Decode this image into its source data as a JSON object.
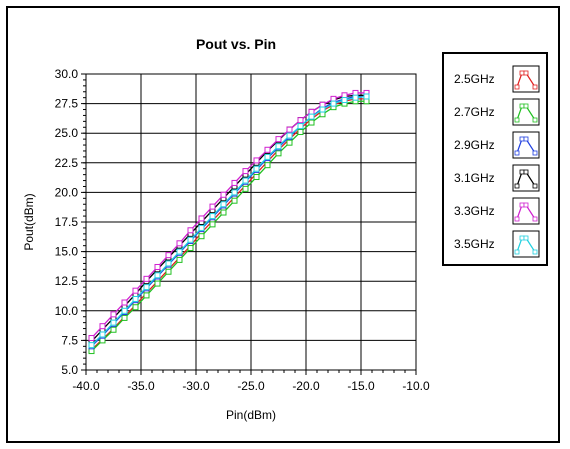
{
  "chart_data": {
    "type": "line",
    "title": "Pout vs. Pin",
    "xlabel": "Pin(dBm)",
    "ylabel": "Pout(dBm)",
    "xlim": [
      -40.0,
      -10.0
    ],
    "ylim": [
      5.0,
      30.0
    ],
    "xticks": [
      "-40.0",
      "-35.0",
      "-30.0",
      "-25.0",
      "-20.0",
      "-15.0",
      "-10.0"
    ],
    "yticks": [
      "5.0",
      "7.5",
      "10.0",
      "12.5",
      "15.0",
      "17.5",
      "20.0",
      "22.5",
      "25.0",
      "27.5",
      "30.0"
    ],
    "grid": true,
    "legend_position": "right",
    "x": [
      -39.5,
      -38.5,
      -37.5,
      -36.5,
      -35.5,
      -34.5,
      -33.5,
      -32.5,
      -31.5,
      -30.5,
      -29.5,
      -28.5,
      -27.5,
      -26.5,
      -25.5,
      -24.5,
      -23.5,
      -22.5,
      -21.5,
      -20.5,
      -19.5,
      -18.5,
      -17.5,
      -16.5,
      -15.5,
      -14.5
    ],
    "series": [
      {
        "name": "2.5GHz",
        "color": "#e02020",
        "values": [
          6.7,
          7.6,
          8.5,
          9.5,
          10.5,
          11.5,
          12.5,
          13.5,
          14.5,
          15.5,
          16.6,
          17.6,
          18.6,
          19.6,
          20.6,
          21.6,
          22.6,
          23.6,
          24.5,
          25.4,
          26.2,
          26.9,
          27.4,
          27.7,
          27.9,
          27.9
        ]
      },
      {
        "name": "2.7GHz",
        "color": "#20c020",
        "values": [
          6.6,
          7.5,
          8.4,
          9.4,
          10.3,
          11.3,
          12.3,
          13.3,
          14.3,
          15.3,
          16.3,
          17.3,
          18.3,
          19.3,
          20.3,
          21.3,
          22.3,
          23.3,
          24.2,
          25.1,
          25.9,
          26.6,
          27.2,
          27.5,
          27.7,
          27.7
        ]
      },
      {
        "name": "2.9GHz",
        "color": "#2040e0",
        "values": [
          7.0,
          7.9,
          8.9,
          9.9,
          10.9,
          11.9,
          12.9,
          13.9,
          14.9,
          15.9,
          16.9,
          17.9,
          18.9,
          19.9,
          20.9,
          21.9,
          22.9,
          23.8,
          24.7,
          25.6,
          26.4,
          27.1,
          27.6,
          27.9,
          28.1,
          28.2
        ]
      },
      {
        "name": "3.1GHz",
        "color": "#000000",
        "values": [
          7.4,
          8.4,
          9.4,
          10.4,
          11.4,
          12.5,
          13.5,
          14.5,
          15.5,
          16.5,
          17.5,
          18.5,
          19.5,
          20.5,
          21.5,
          22.5,
          23.5,
          24.4,
          25.3,
          26.1,
          26.8,
          27.4,
          27.8,
          28.1,
          28.2,
          28.2
        ]
      },
      {
        "name": "3.3GHz",
        "color": "#d020d0",
        "values": [
          7.7,
          8.7,
          9.7,
          10.7,
          11.7,
          12.7,
          13.7,
          14.7,
          15.7,
          16.8,
          17.8,
          18.8,
          19.8,
          20.8,
          21.8,
          22.7,
          23.6,
          24.5,
          25.3,
          26.1,
          26.8,
          27.4,
          27.9,
          28.2,
          28.4,
          28.4
        ]
      },
      {
        "name": "3.5GHz",
        "color": "#20d0e0",
        "values": [
          7.1,
          8.0,
          9.0,
          10.0,
          11.0,
          12.0,
          13.0,
          14.0,
          15.0,
          16.0,
          17.0,
          18.0,
          19.0,
          20.0,
          21.0,
          22.0,
          23.0,
          23.9,
          24.8,
          25.6,
          26.4,
          27.0,
          27.5,
          27.8,
          28.0,
          28.1
        ]
      }
    ]
  }
}
